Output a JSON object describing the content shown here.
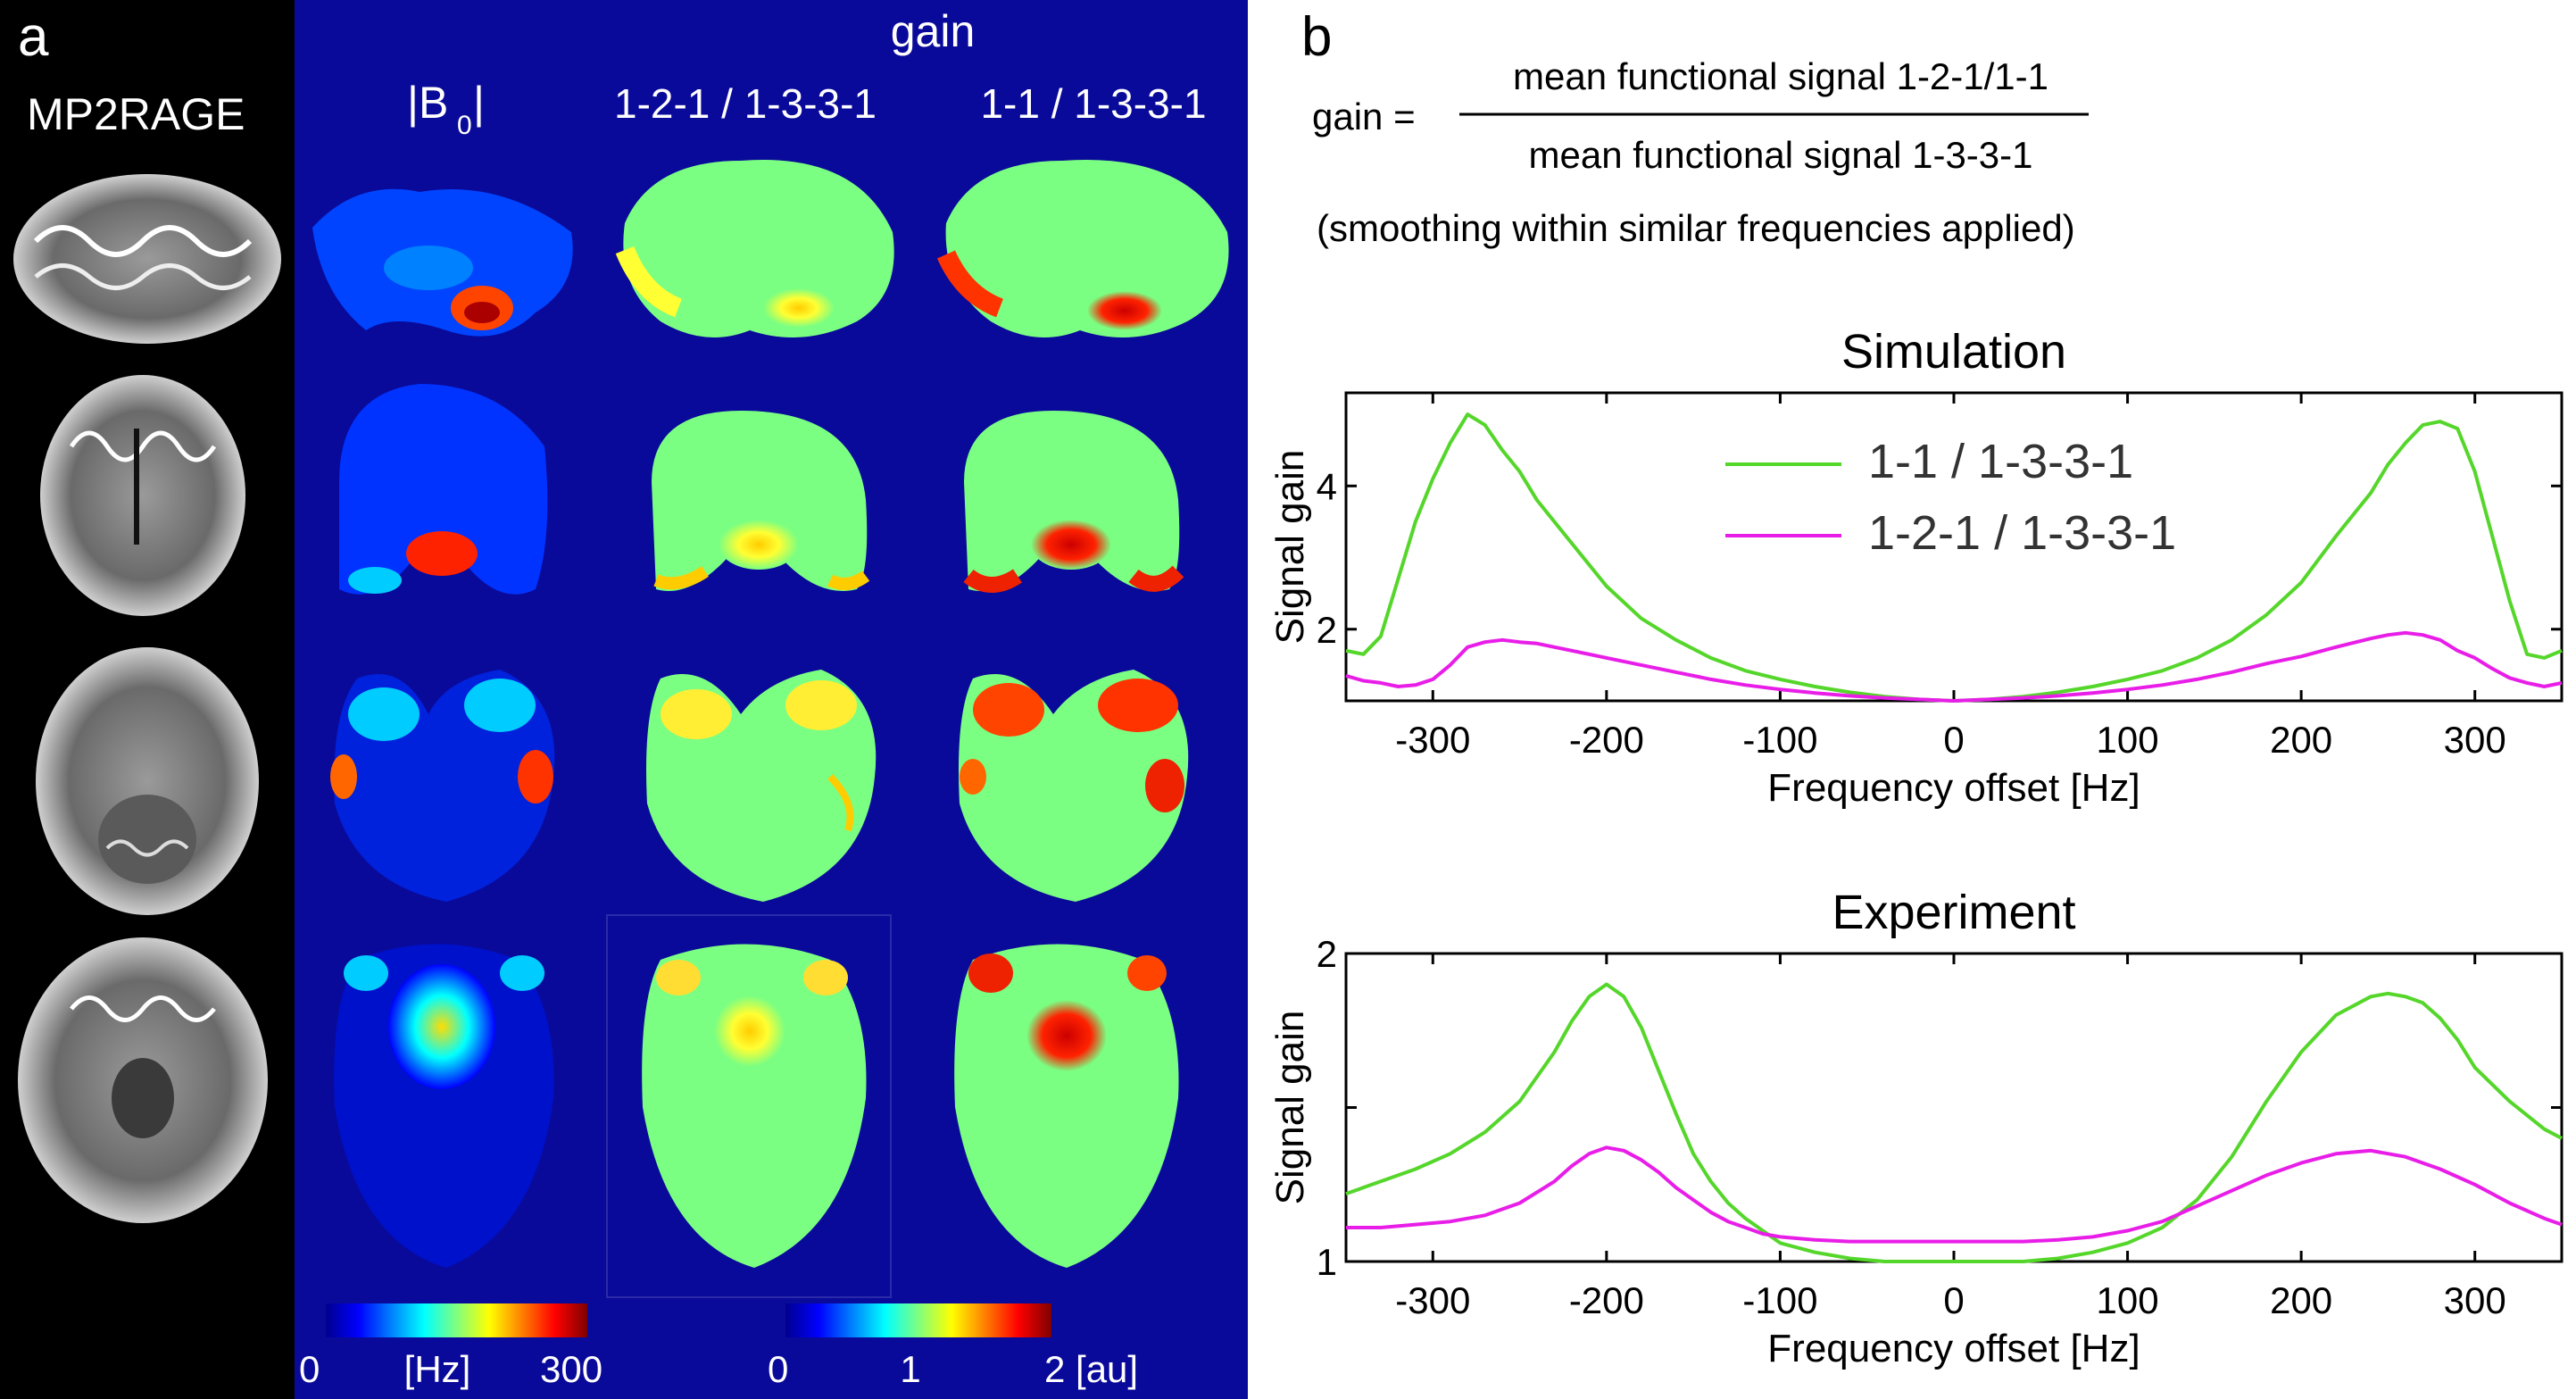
{
  "panel_a": {
    "label": "a",
    "mp2rage_title": "MP2RAGE",
    "gain_title": "gain",
    "col_b0_prefix": "|B",
    "col_b0_sub": "0",
    "col_b0_suffix": "|",
    "col_121": "1-2-1 / 1-3-3-1",
    "col_11": "1-1 / 1-3-3-1",
    "colorbar_hz": {
      "min": "0",
      "unit": "[Hz]",
      "max": "300"
    },
    "colorbar_au": {
      "min": "0",
      "mid": "1",
      "max": "2 [au]"
    }
  },
  "panel_b": {
    "label": "b",
    "formula": {
      "lhs": "gain =",
      "numerator": "mean functional signal 1-2-1/1-1",
      "denominator": "mean functional signal 1-3-3-1",
      "note": "(smoothing within similar frequencies applied)"
    }
  },
  "colors": {
    "green": "#55d62a",
    "magenta": "#e81ee8",
    "jet_bg": "#0a0a9a"
  },
  "chart_data": [
    {
      "type": "line",
      "title": "Simulation",
      "xlabel": "Frequency offset [Hz]",
      "ylabel": "Signal gain",
      "xlim": [
        -350,
        350
      ],
      "ylim": [
        1,
        5.3
      ],
      "xticks": [
        -300,
        -200,
        -100,
        0,
        100,
        200,
        300
      ],
      "xtick_labels": [
        "-300",
        "-200",
        "-100",
        "0",
        "100",
        "200",
        "300"
      ],
      "yticks": [
        2,
        4
      ],
      "ytick_labels": [
        "2",
        "4"
      ],
      "legend_position": "top-center",
      "series": [
        {
          "name": "1-1 / 1-3-3-1",
          "color": "#55d62a",
          "x": [
            -350,
            -340,
            -330,
            -320,
            -310,
            -300,
            -290,
            -280,
            -270,
            -260,
            -250,
            -240,
            -220,
            -200,
            -180,
            -160,
            -140,
            -120,
            -100,
            -80,
            -60,
            -40,
            -20,
            0,
            20,
            40,
            60,
            80,
            100,
            120,
            140,
            160,
            180,
            200,
            220,
            240,
            250,
            260,
            270,
            280,
            290,
            300,
            310,
            320,
            330,
            340,
            350
          ],
          "values": [
            1.7,
            1.65,
            1.9,
            2.7,
            3.5,
            4.1,
            4.6,
            5.0,
            4.85,
            4.5,
            4.2,
            3.8,
            3.2,
            2.6,
            2.15,
            1.85,
            1.6,
            1.42,
            1.3,
            1.2,
            1.12,
            1.06,
            1.02,
            1.0,
            1.02,
            1.06,
            1.12,
            1.2,
            1.3,
            1.42,
            1.6,
            1.85,
            2.2,
            2.65,
            3.3,
            3.9,
            4.3,
            4.6,
            4.85,
            4.9,
            4.8,
            4.2,
            3.3,
            2.4,
            1.65,
            1.6,
            1.7
          ]
        },
        {
          "name": "1-2-1 / 1-3-3-1",
          "color": "#e81ee8",
          "x": [
            -350,
            -340,
            -330,
            -320,
            -310,
            -300,
            -290,
            -280,
            -270,
            -260,
            -250,
            -240,
            -220,
            -200,
            -180,
            -160,
            -140,
            -120,
            -100,
            -80,
            -60,
            -40,
            -20,
            0,
            20,
            40,
            60,
            80,
            100,
            120,
            140,
            160,
            180,
            200,
            220,
            240,
            250,
            260,
            270,
            280,
            290,
            300,
            310,
            320,
            330,
            340,
            350
          ],
          "values": [
            1.35,
            1.28,
            1.25,
            1.2,
            1.22,
            1.3,
            1.5,
            1.75,
            1.82,
            1.85,
            1.82,
            1.8,
            1.7,
            1.6,
            1.5,
            1.4,
            1.3,
            1.22,
            1.16,
            1.11,
            1.07,
            1.04,
            1.02,
            1.0,
            1.02,
            1.04,
            1.07,
            1.11,
            1.16,
            1.22,
            1.3,
            1.4,
            1.52,
            1.62,
            1.75,
            1.87,
            1.92,
            1.95,
            1.92,
            1.85,
            1.7,
            1.6,
            1.45,
            1.32,
            1.25,
            1.2,
            1.25
          ]
        }
      ]
    },
    {
      "type": "line",
      "title": "Experiment",
      "xlabel": "Frequency offset [Hz]",
      "ylabel": "Signal gain",
      "xlim": [
        -350,
        350
      ],
      "ylim": [
        1,
        2
      ],
      "xticks": [
        -300,
        -200,
        -100,
        0,
        100,
        200,
        300
      ],
      "xtick_labels": [
        "-300",
        "-200",
        "-100",
        "0",
        "100",
        "200",
        "300"
      ],
      "yticks": [
        1,
        1.5,
        2
      ],
      "ytick_labels": [
        "1",
        "",
        "2"
      ],
      "series": [
        {
          "name": "1-1 / 1-3-3-1",
          "color": "#55d62a",
          "x": [
            -350,
            -330,
            -310,
            -290,
            -270,
            -250,
            -230,
            -220,
            -210,
            -200,
            -190,
            -180,
            -170,
            -160,
            -150,
            -140,
            -130,
            -120,
            -110,
            -100,
            -80,
            -60,
            -40,
            -20,
            0,
            20,
            40,
            60,
            80,
            100,
            120,
            140,
            160,
            180,
            200,
            220,
            240,
            250,
            260,
            270,
            280,
            290,
            300,
            320,
            340,
            350
          ],
          "values": [
            1.22,
            1.26,
            1.3,
            1.35,
            1.42,
            1.52,
            1.68,
            1.78,
            1.86,
            1.9,
            1.86,
            1.76,
            1.62,
            1.48,
            1.35,
            1.26,
            1.19,
            1.14,
            1.1,
            1.06,
            1.03,
            1.01,
            1.0,
            1.0,
            1.0,
            1.0,
            1.0,
            1.01,
            1.03,
            1.06,
            1.11,
            1.2,
            1.34,
            1.52,
            1.68,
            1.8,
            1.86,
            1.87,
            1.86,
            1.84,
            1.79,
            1.72,
            1.63,
            1.52,
            1.43,
            1.4
          ]
        },
        {
          "name": "1-2-1 / 1-3-3-1",
          "color": "#e81ee8",
          "x": [
            -350,
            -330,
            -310,
            -290,
            -270,
            -250,
            -230,
            -220,
            -210,
            -200,
            -190,
            -180,
            -170,
            -160,
            -150,
            -140,
            -130,
            -120,
            -110,
            -100,
            -80,
            -60,
            -40,
            -20,
            0,
            20,
            40,
            60,
            80,
            100,
            120,
            140,
            160,
            180,
            200,
            220,
            240,
            260,
            280,
            300,
            320,
            340,
            350
          ],
          "values": [
            1.11,
            1.11,
            1.12,
            1.13,
            1.15,
            1.19,
            1.26,
            1.31,
            1.35,
            1.37,
            1.36,
            1.33,
            1.29,
            1.24,
            1.2,
            1.16,
            1.13,
            1.11,
            1.09,
            1.08,
            1.07,
            1.065,
            1.065,
            1.065,
            1.065,
            1.065,
            1.065,
            1.07,
            1.08,
            1.1,
            1.13,
            1.18,
            1.23,
            1.28,
            1.32,
            1.35,
            1.36,
            1.34,
            1.3,
            1.25,
            1.19,
            1.14,
            1.12
          ]
        }
      ]
    }
  ]
}
